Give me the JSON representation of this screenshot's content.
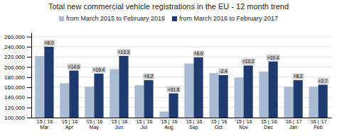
{
  "chart_data": {
    "type": "bar",
    "title": "Total new commercial vehicle registrations in the EU - 12 month trend",
    "categories": [
      "'15 | '16\nMar",
      "'15 | '16\nApr",
      "'15 | '16\nMay",
      "'15 | '16\nJun",
      "'15 | '16\nJul",
      "'15 | '16\nAug",
      "'15 | '16\nSep",
      "'15 | '16\nOct",
      "'15 | '16\nNov",
      "'15 | '16\nDec",
      "'16 | '17\nJan",
      "'16 | '17\nFeb"
    ],
    "series": [
      {
        "name": "from March 2015 to February 2016",
        "color": "#aabbd4",
        "values": [
          222000,
          168000,
          161000,
          196000,
          164000,
          112000,
          207000,
          188000,
          179000,
          191000,
          161000,
          161000
        ]
      },
      {
        "name": "from March 2016 to February 2017",
        "color": "#1f3a6e",
        "values": [
          240000,
          193000,
          187000,
          222000,
          174000,
          148000,
          219000,
          184000,
          203000,
          211000,
          174000,
          165000
        ]
      }
    ],
    "annotations": [
      "+8.0",
      "+14.6",
      "+16.4",
      "+13.3",
      "+6.2",
      "+31.8",
      "+6.0",
      "-2.4",
      "+13.2",
      "+10.4",
      "+8.2",
      "+2.7"
    ],
    "ylim": [
      100000,
      268000
    ],
    "yticks": [
      {
        "value": 100000,
        "label": "100,000"
      },
      {
        "value": 120000,
        "label": "120,000"
      },
      {
        "value": 140000,
        "label": "140,000"
      },
      {
        "value": 160000,
        "label": "160,000"
      },
      {
        "value": 180000,
        "label": "180,000"
      },
      {
        "value": 200000,
        "label": "200,000"
      },
      {
        "value": 220000,
        "label": "220,000"
      },
      {
        "value": 240000,
        "label": "240,000"
      },
      {
        "value": 260000,
        "label": "260,000"
      }
    ],
    "grid": true,
    "legend": "top"
  }
}
